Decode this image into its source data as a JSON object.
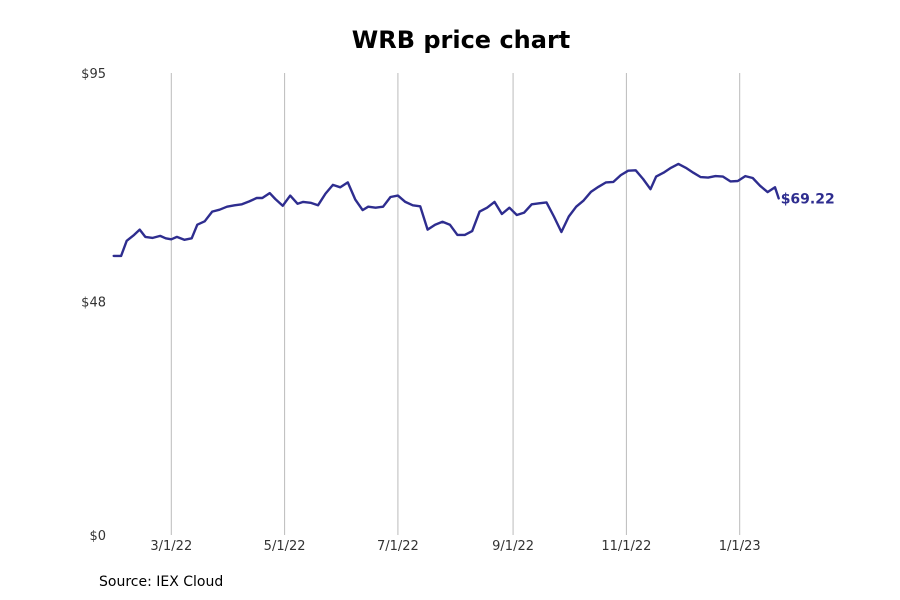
{
  "chart_data": {
    "type": "line",
    "title": "WRB price chart",
    "source": "Source: IEX Cloud",
    "xlabel": "",
    "ylabel": "",
    "ylim": [
      0,
      95
    ],
    "y_ticks": [
      {
        "value": 0,
        "label": "$0"
      },
      {
        "value": 48,
        "label": "$48"
      },
      {
        "value": 95,
        "label": "$95"
      }
    ],
    "x_ticks": [
      {
        "date": "2022-03-01",
        "label": "3/1/22"
      },
      {
        "date": "2022-05-01",
        "label": "5/1/22"
      },
      {
        "date": "2022-07-01",
        "label": "7/1/22"
      },
      {
        "date": "2022-09-01",
        "label": "9/1/22"
      },
      {
        "date": "2022-11-01",
        "label": "11/1/22"
      },
      {
        "date": "2023-01-01",
        "label": "1/1/23"
      }
    ],
    "xlim": [
      "2022-01-27",
      "2023-02-24"
    ],
    "grid": "vertical",
    "end_label": "$69.22",
    "colors": {
      "line": "#2e2d8f",
      "grid": "#bbbbbb"
    },
    "series": [
      {
        "points": [
          [
            "2022-01-29",
            57.4
          ],
          [
            "2022-02-02",
            57.4
          ],
          [
            "2022-02-05",
            60.5
          ],
          [
            "2022-02-09",
            61.7
          ],
          [
            "2022-02-12",
            62.8
          ],
          [
            "2022-02-15",
            61.3
          ],
          [
            "2022-02-19",
            61.1
          ],
          [
            "2022-02-23",
            61.5
          ],
          [
            "2022-02-26",
            61.0
          ],
          [
            "2022-03-01",
            60.8
          ],
          [
            "2022-03-04",
            61.3
          ],
          [
            "2022-03-08",
            60.7
          ],
          [
            "2022-03-12",
            61.0
          ],
          [
            "2022-03-15",
            63.8
          ],
          [
            "2022-03-19",
            64.5
          ],
          [
            "2022-03-23",
            66.5
          ],
          [
            "2022-03-27",
            66.9
          ],
          [
            "2022-03-31",
            67.5
          ],
          [
            "2022-04-04",
            67.8
          ],
          [
            "2022-04-08",
            68.0
          ],
          [
            "2022-04-12",
            68.6
          ],
          [
            "2022-04-16",
            69.3
          ],
          [
            "2022-04-19",
            69.3
          ],
          [
            "2022-04-23",
            70.3
          ],
          [
            "2022-04-26",
            69.1
          ],
          [
            "2022-04-30",
            67.7
          ],
          [
            "2022-05-04",
            69.8
          ],
          [
            "2022-05-08",
            68.1
          ],
          [
            "2022-05-11",
            68.5
          ],
          [
            "2022-05-15",
            68.3
          ],
          [
            "2022-05-19",
            67.8
          ],
          [
            "2022-05-23",
            70.2
          ],
          [
            "2022-05-27",
            72.0
          ],
          [
            "2022-05-31",
            71.5
          ],
          [
            "2022-06-04",
            72.5
          ],
          [
            "2022-06-08",
            69.0
          ],
          [
            "2022-06-12",
            66.8
          ],
          [
            "2022-06-15",
            67.5
          ],
          [
            "2022-06-19",
            67.3
          ],
          [
            "2022-06-23",
            67.5
          ],
          [
            "2022-06-27",
            69.5
          ],
          [
            "2022-07-01",
            69.8
          ],
          [
            "2022-07-05",
            68.5
          ],
          [
            "2022-07-09",
            67.8
          ],
          [
            "2022-07-13",
            67.6
          ],
          [
            "2022-07-17",
            62.8
          ],
          [
            "2022-07-21",
            63.8
          ],
          [
            "2022-07-25",
            64.4
          ],
          [
            "2022-07-29",
            63.8
          ],
          [
            "2022-08-02",
            61.7
          ],
          [
            "2022-08-06",
            61.7
          ],
          [
            "2022-08-10",
            62.5
          ],
          [
            "2022-08-14",
            66.5
          ],
          [
            "2022-08-18",
            67.3
          ],
          [
            "2022-08-22",
            68.5
          ],
          [
            "2022-08-26",
            66.0
          ],
          [
            "2022-08-30",
            67.3
          ],
          [
            "2022-09-03",
            65.8
          ],
          [
            "2022-09-07",
            66.3
          ],
          [
            "2022-09-11",
            68.0
          ],
          [
            "2022-09-15",
            68.2
          ],
          [
            "2022-09-19",
            68.4
          ],
          [
            "2022-09-23",
            65.5
          ],
          [
            "2022-09-27",
            62.3
          ],
          [
            "2022-10-01",
            65.5
          ],
          [
            "2022-10-05",
            67.5
          ],
          [
            "2022-10-09",
            68.8
          ],
          [
            "2022-10-13",
            70.6
          ],
          [
            "2022-10-17",
            71.6
          ],
          [
            "2022-10-21",
            72.5
          ],
          [
            "2022-10-25",
            72.6
          ],
          [
            "2022-10-29",
            74.0
          ],
          [
            "2022-11-02",
            74.9
          ],
          [
            "2022-11-06",
            75.0
          ],
          [
            "2022-11-10",
            73.2
          ],
          [
            "2022-11-14",
            71.1
          ],
          [
            "2022-11-17",
            73.7
          ],
          [
            "2022-11-21",
            74.5
          ],
          [
            "2022-11-25",
            75.5
          ],
          [
            "2022-11-29",
            76.3
          ],
          [
            "2022-12-03",
            75.5
          ],
          [
            "2022-12-07",
            74.5
          ],
          [
            "2022-12-11",
            73.6
          ],
          [
            "2022-12-15",
            73.5
          ],
          [
            "2022-12-19",
            73.8
          ],
          [
            "2022-12-23",
            73.7
          ],
          [
            "2022-12-27",
            72.7
          ],
          [
            "2022-12-31",
            72.8
          ],
          [
            "2023-01-04",
            73.8
          ],
          [
            "2023-01-08",
            73.4
          ],
          [
            "2023-01-12",
            71.8
          ],
          [
            "2023-01-16",
            70.5
          ],
          [
            "2023-01-20",
            71.5
          ],
          [
            "2023-01-22",
            69.22
          ]
        ]
      }
    ]
  }
}
